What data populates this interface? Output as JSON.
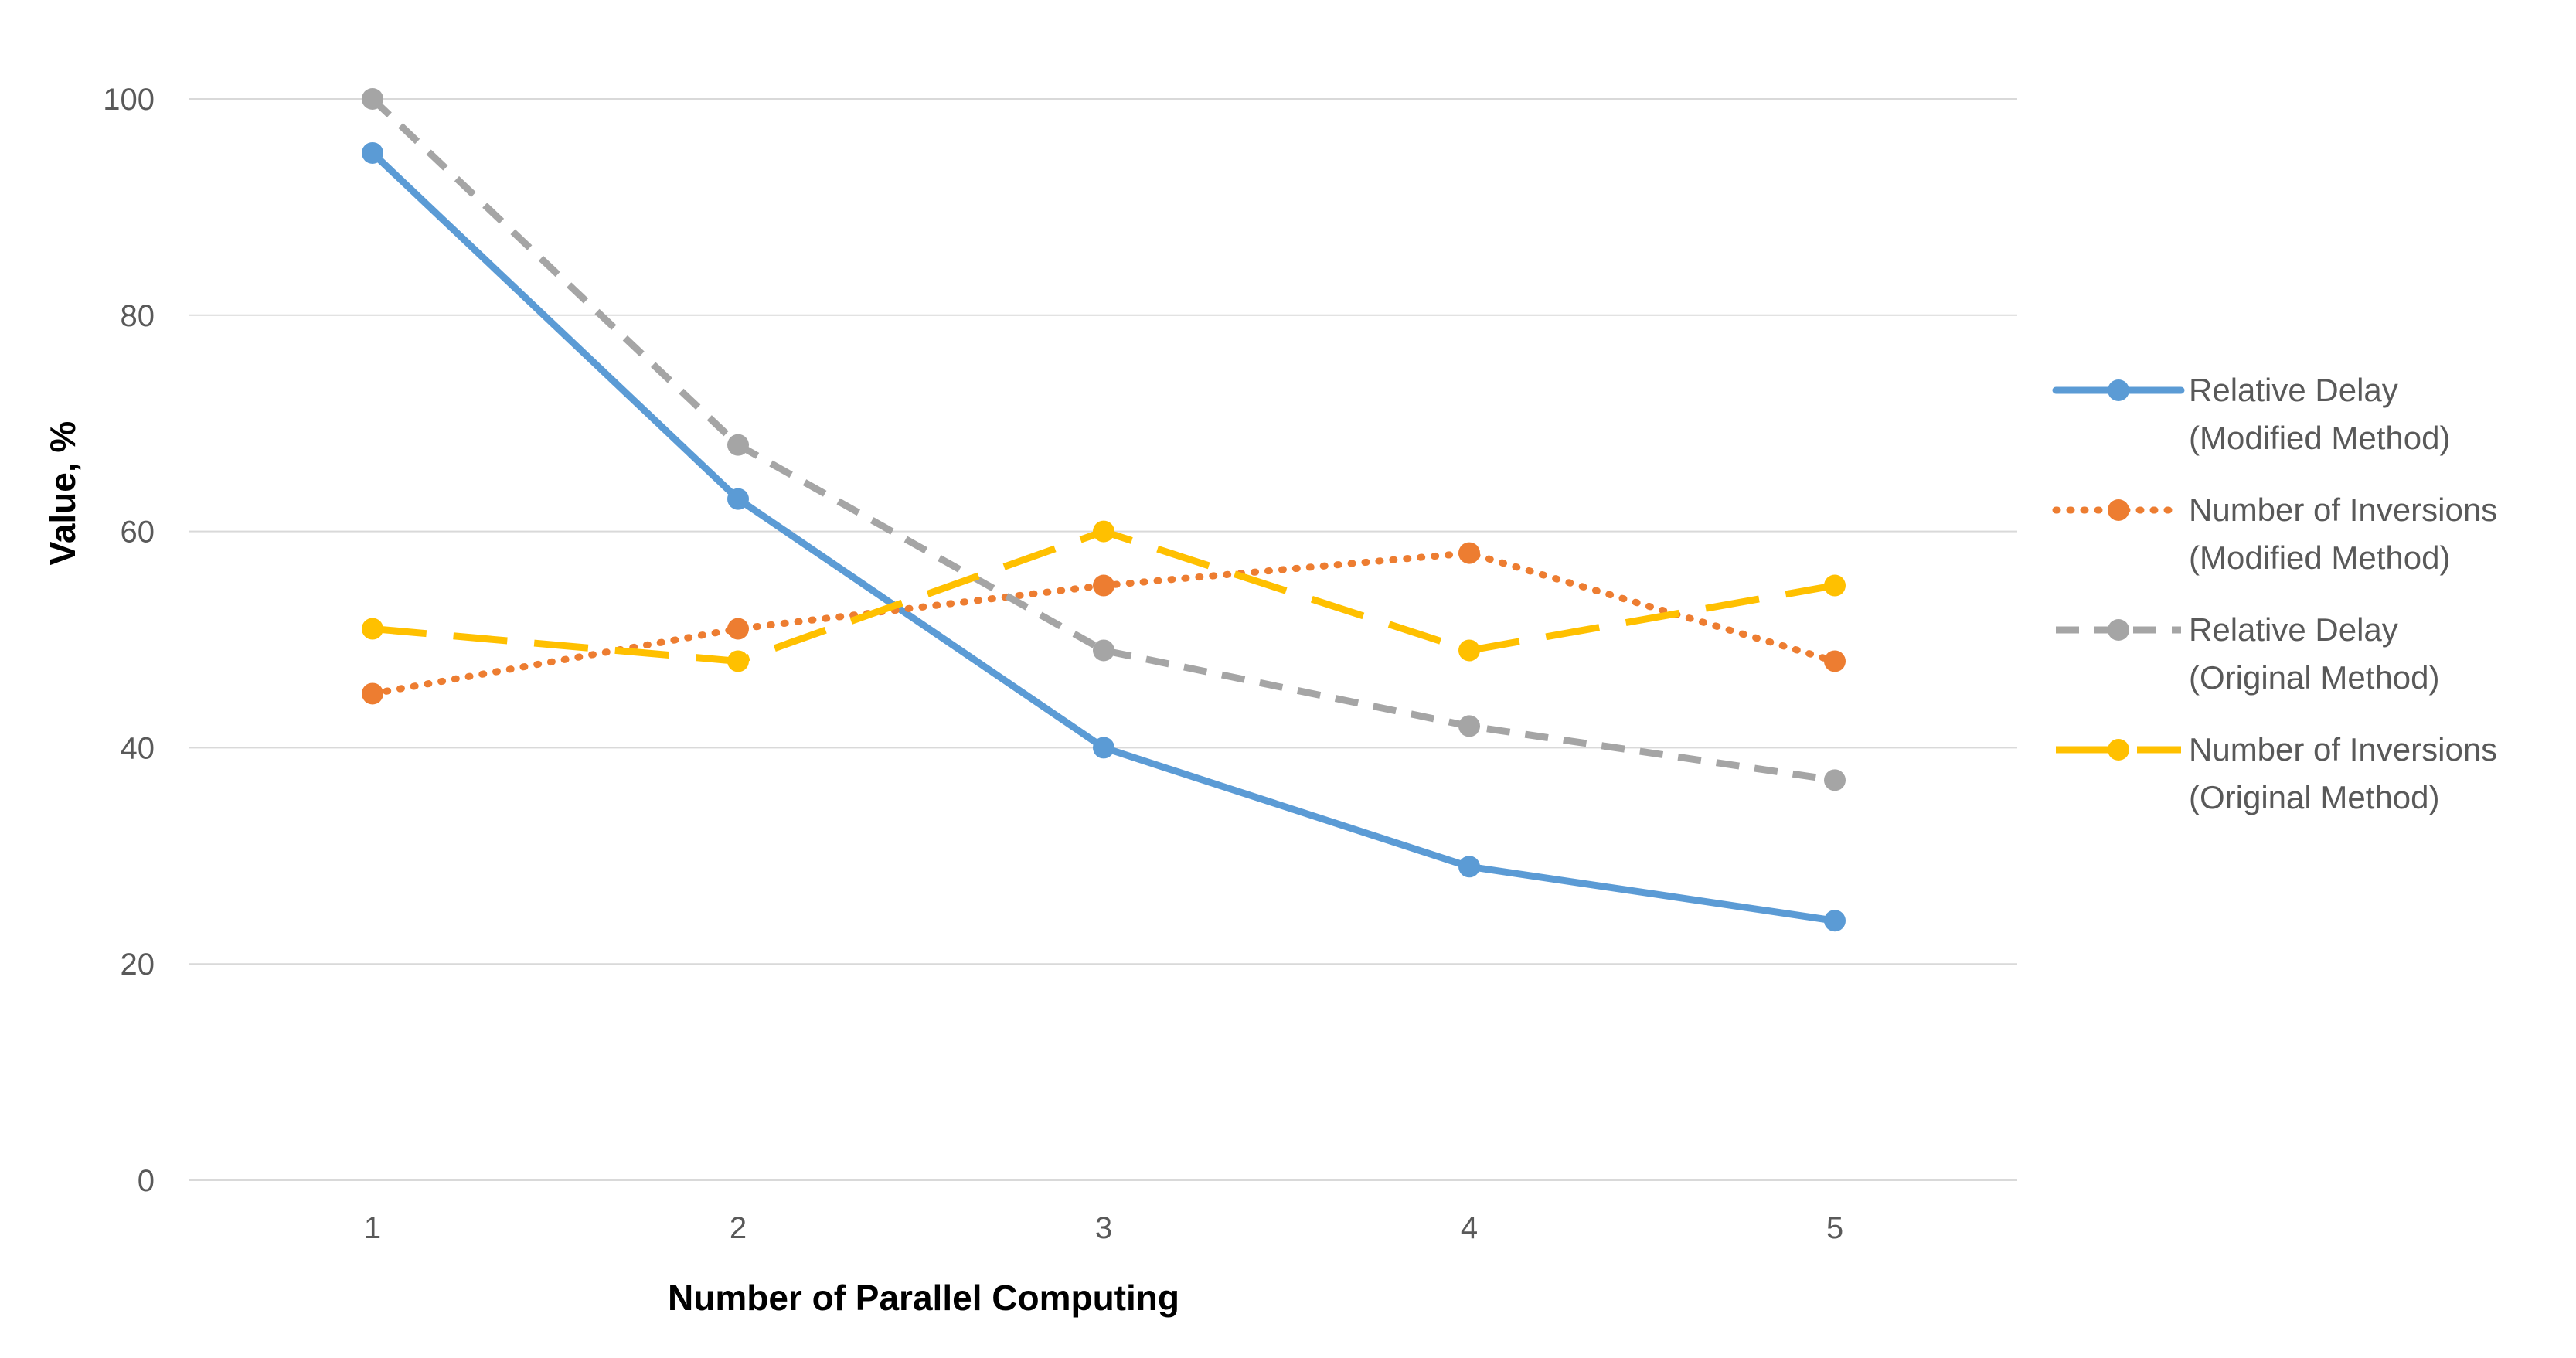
{
  "chart_data": {
    "type": "line",
    "title": "",
    "xlabel": "Number of Parallel Computing",
    "ylabel": "Value, %",
    "x": [
      1,
      2,
      3,
      4,
      5
    ],
    "x_tick_labels": [
      "1",
      "2",
      "3",
      "4",
      "5"
    ],
    "ylim": [
      0,
      100
    ],
    "y_ticks": [
      0,
      20,
      40,
      60,
      80,
      100
    ],
    "y_tick_labels": [
      "0",
      "20",
      "40",
      "60",
      "80",
      "100"
    ],
    "grid": true,
    "legend_position": "right",
    "series": [
      {
        "name": "Relative Delay (Modified Method)",
        "name_lines": [
          "Relative Delay",
          "(Modified Method)"
        ],
        "values": [
          95,
          63,
          40,
          29,
          24
        ],
        "color": "#5B9BD5",
        "style": "solid"
      },
      {
        "name": "Number of Inversions (Modified Method)",
        "name_lines": [
          "Number of Inversions",
          "(Modified Method)"
        ],
        "values": [
          45,
          51,
          55,
          58,
          48
        ],
        "color": "#ED7D31",
        "style": "dotted"
      },
      {
        "name": "Relative Delay (Original Method)",
        "name_lines": [
          "Relative Delay",
          "(Original Method)"
        ],
        "values": [
          100,
          68,
          49,
          42,
          37
        ],
        "color": "#A5A5A5",
        "style": "dashed"
      },
      {
        "name": "Number of Inversions (Original Method)",
        "name_lines": [
          "Number of Inversions",
          "(Original Method)"
        ],
        "values": [
          51,
          48,
          60,
          49,
          55
        ],
        "color": "#FFC000",
        "style": "long-dash"
      }
    ]
  }
}
